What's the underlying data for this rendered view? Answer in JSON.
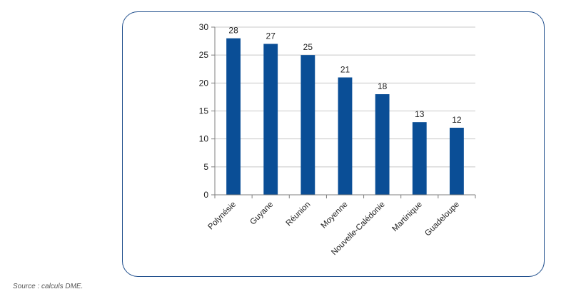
{
  "chart_data": {
    "type": "bar",
    "categories": [
      "Polynésie",
      "Guyane",
      "Réunion",
      "Moyenne",
      "Nouvelle-Calédonie",
      "Martinique",
      "Guadeloupe"
    ],
    "values": [
      28,
      27,
      25,
      21,
      18,
      13,
      12
    ],
    "data_labels": [
      "28",
      "27",
      "25",
      "21",
      "18",
      "13",
      "12"
    ],
    "ylim": [
      0,
      30
    ],
    "yticks": [
      "0",
      "5",
      "10",
      "15",
      "20",
      "25",
      "30"
    ],
    "ytick_values": [
      0,
      5,
      10,
      15,
      20,
      25,
      30
    ],
    "title": "",
    "xlabel": "",
    "ylabel": "",
    "grid": true,
    "legend": "none",
    "bar_color": "#0a4e96",
    "grid_color": "#c8c8c8"
  },
  "source_note": "Source : calculs DME."
}
